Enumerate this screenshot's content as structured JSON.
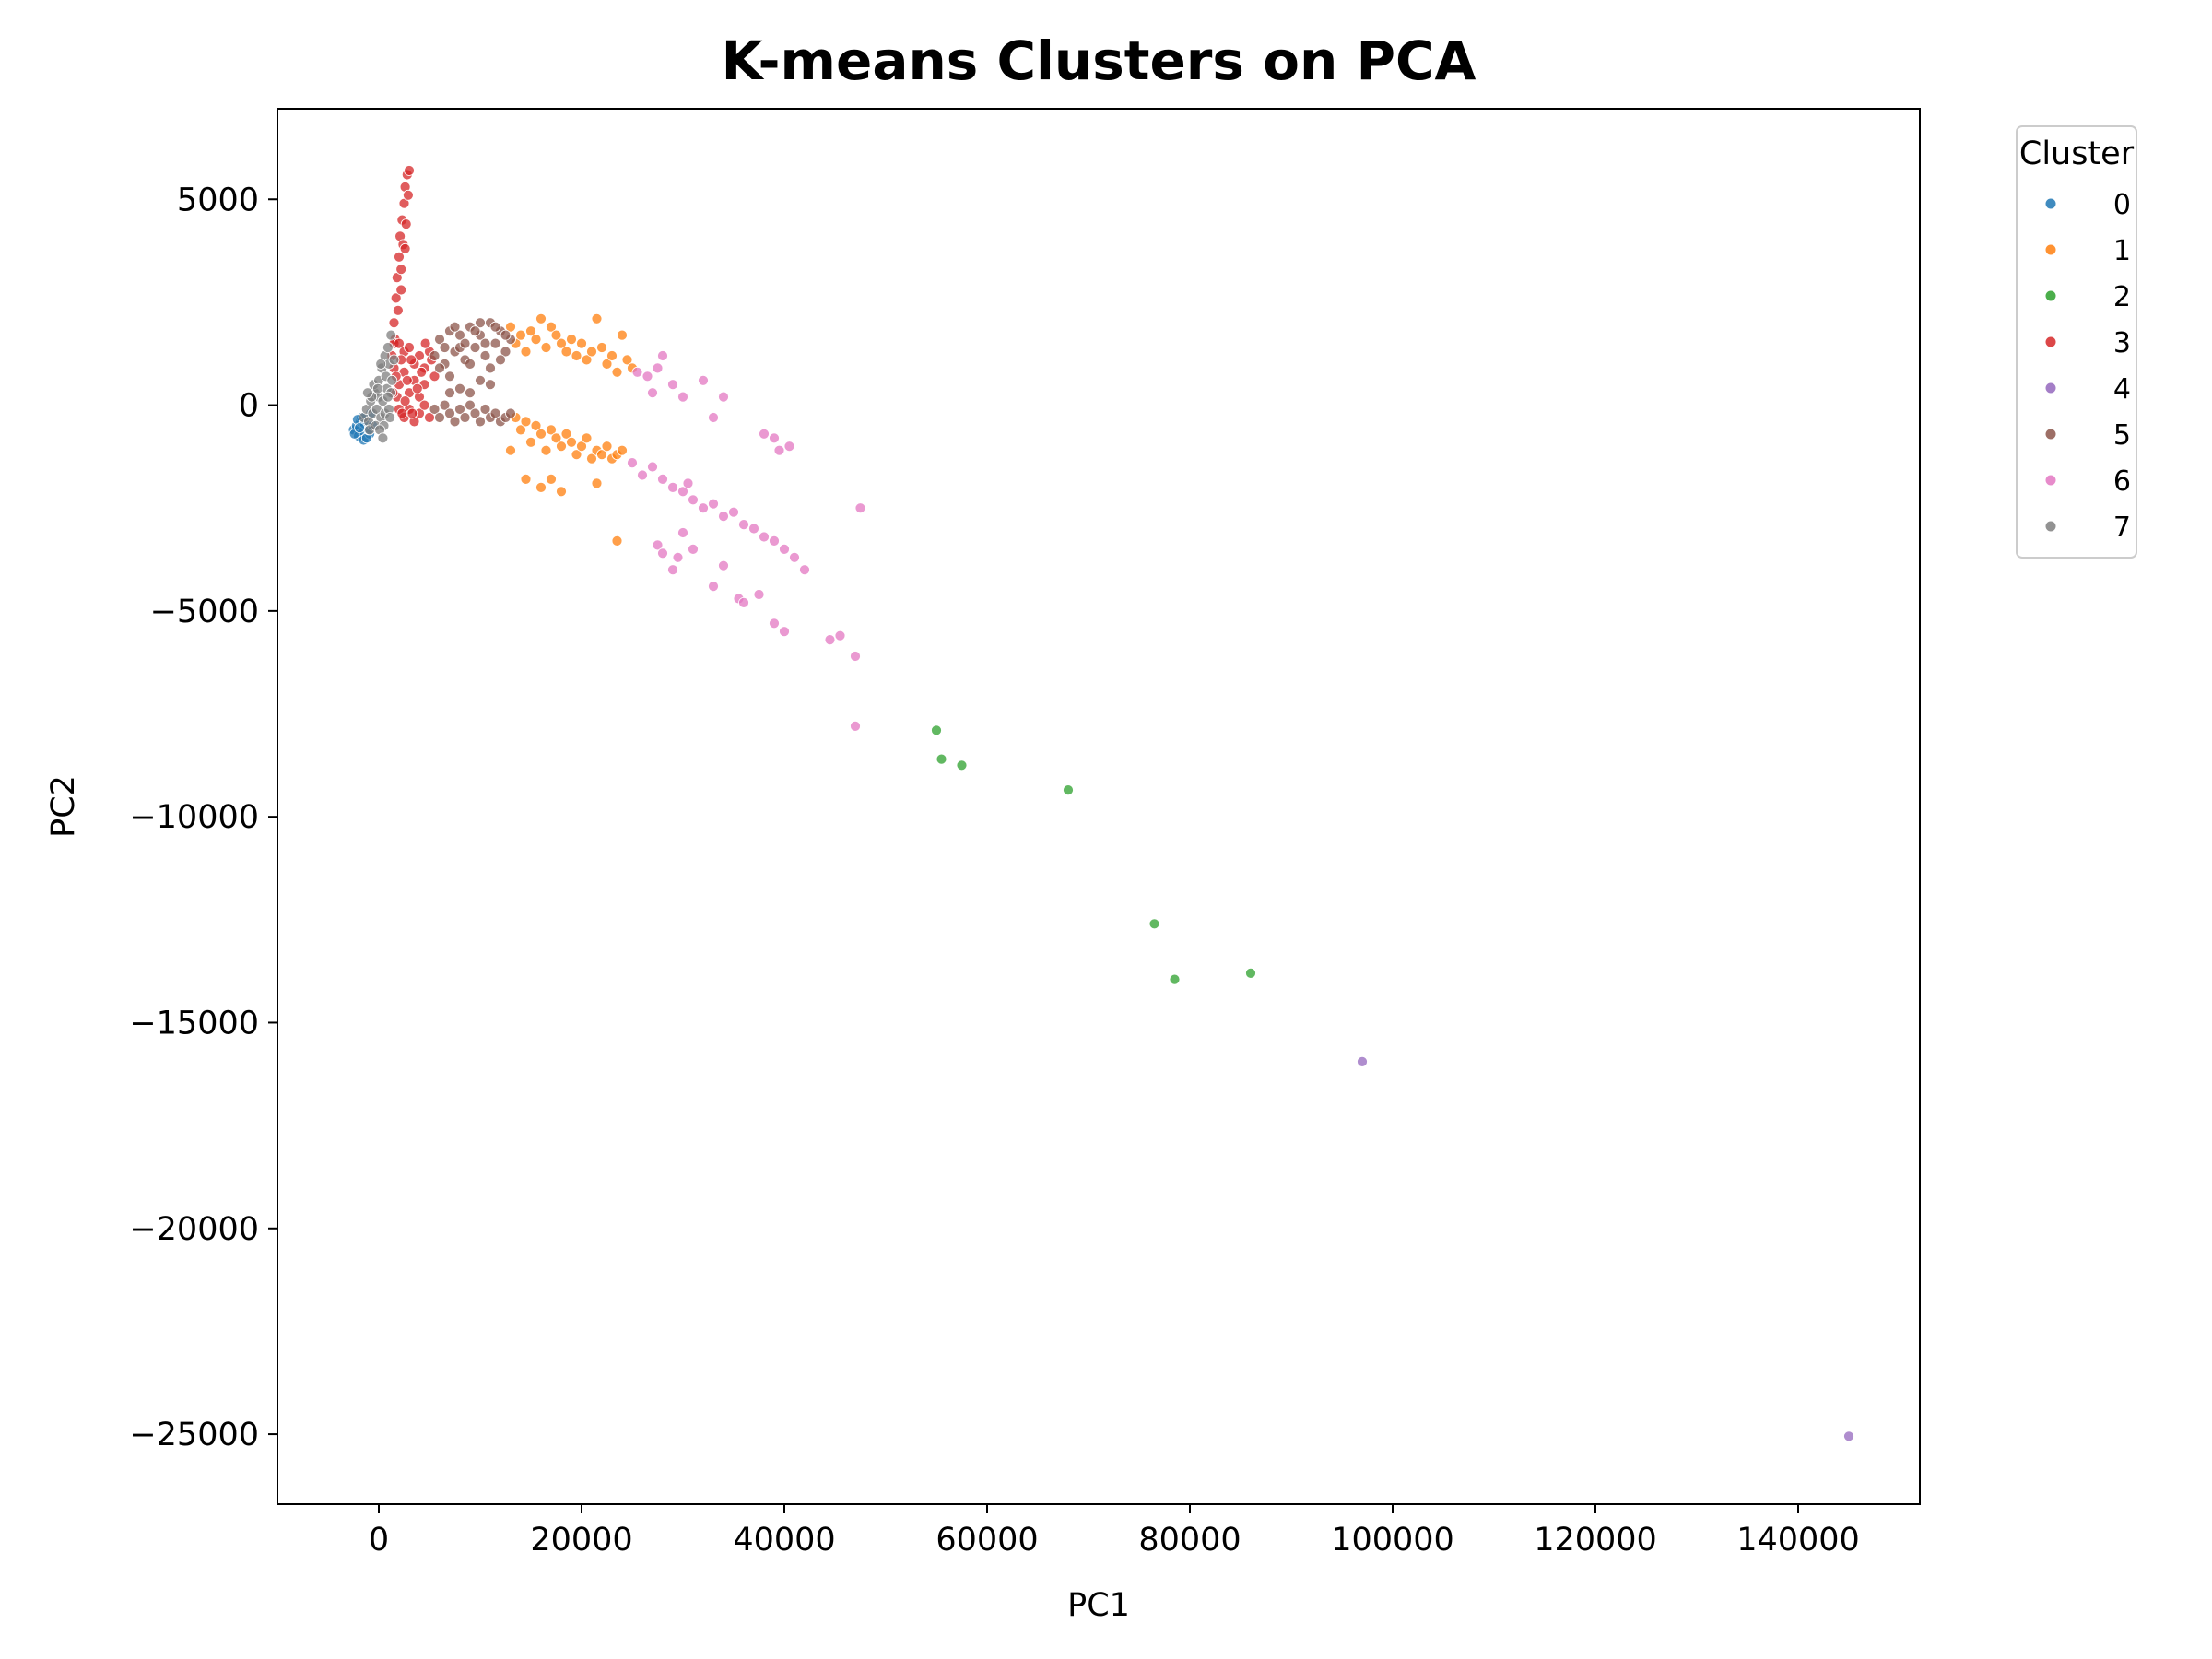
{
  "chart_data": {
    "type": "scatter",
    "title": "K-means Clusters on PCA",
    "xlabel": "PC1",
    "ylabel": "PC2",
    "xlim": [
      -10000,
      152000
    ],
    "ylim": [
      -26700,
      7200
    ],
    "xticks": [
      0,
      20000,
      40000,
      60000,
      80000,
      100000,
      120000,
      140000
    ],
    "xtick_labels": [
      "0",
      "20000",
      "40000",
      "60000",
      "80000",
      "100000",
      "120000",
      "140000"
    ],
    "yticks": [
      5000,
      0,
      -5000,
      -10000,
      -15000,
      -20000,
      -25000
    ],
    "ytick_labels": [
      "5000",
      "0",
      "−5000",
      "−10000",
      "−15000",
      "−20000",
      "−25000"
    ],
    "grid": false,
    "legend": {
      "title": "Cluster",
      "placement": "outside-top-right"
    },
    "series": [
      {
        "name": "0",
        "color": "#1f77b4",
        "points": [
          [
            -2500,
            -600
          ],
          [
            -2200,
            -500
          ],
          [
            -2000,
            -750
          ],
          [
            -1800,
            -400
          ],
          [
            -1600,
            -650
          ],
          [
            -1500,
            -850
          ],
          [
            -1300,
            -300
          ],
          [
            -1100,
            -550
          ],
          [
            -900,
            -700
          ],
          [
            -800,
            -200
          ],
          [
            -2400,
            -700
          ],
          [
            -1700,
            -300
          ],
          [
            -1200,
            -800
          ],
          [
            -2100,
            -350
          ],
          [
            -1400,
            -450
          ],
          [
            -1000,
            -600
          ],
          [
            -600,
            -500
          ],
          [
            -1900,
            -550
          ]
        ]
      },
      {
        "name": "1",
        "color": "#ff7f0e",
        "points": [
          [
            13000,
            1900
          ],
          [
            13500,
            1500
          ],
          [
            14000,
            1700
          ],
          [
            14500,
            1300
          ],
          [
            15000,
            1800
          ],
          [
            15500,
            1600
          ],
          [
            16000,
            2100
          ],
          [
            16500,
            1400
          ],
          [
            17000,
            1900
          ],
          [
            17500,
            1700
          ],
          [
            18000,
            1500
          ],
          [
            18500,
            1300
          ],
          [
            19000,
            1600
          ],
          [
            19500,
            1200
          ],
          [
            20000,
            1500
          ],
          [
            20500,
            1100
          ],
          [
            21000,
            1300
          ],
          [
            21500,
            2100
          ],
          [
            22000,
            1400
          ],
          [
            22500,
            1000
          ],
          [
            23000,
            1200
          ],
          [
            23500,
            800
          ],
          [
            24000,
            1700
          ],
          [
            24500,
            1100
          ],
          [
            25000,
            900
          ],
          [
            13500,
            -300
          ],
          [
            14000,
            -600
          ],
          [
            14500,
            -400
          ],
          [
            15000,
            -900
          ],
          [
            15500,
            -500
          ],
          [
            16000,
            -700
          ],
          [
            16500,
            -1100
          ],
          [
            17000,
            -600
          ],
          [
            17500,
            -800
          ],
          [
            18000,
            -1000
          ],
          [
            18500,
            -700
          ],
          [
            19000,
            -900
          ],
          [
            19500,
            -1200
          ],
          [
            20000,
            -1000
          ],
          [
            20500,
            -800
          ],
          [
            21000,
            -1300
          ],
          [
            21500,
            -1100
          ],
          [
            22000,
            -1200
          ],
          [
            22500,
            -1000
          ],
          [
            23000,
            -1300
          ],
          [
            23500,
            -1200
          ],
          [
            24000,
            -1100
          ],
          [
            13000,
            -1100
          ],
          [
            14500,
            -1800
          ],
          [
            16000,
            -2000
          ],
          [
            17000,
            -1800
          ],
          [
            18000,
            -2100
          ],
          [
            21500,
            -1900
          ],
          [
            23500,
            -3300
          ]
        ]
      },
      {
        "name": "2",
        "color": "#2ca02c",
        "points": [
          [
            55000,
            -7900
          ],
          [
            55500,
            -8600
          ],
          [
            57500,
            -8750
          ],
          [
            68000,
            -9350
          ],
          [
            76500,
            -12600
          ],
          [
            78500,
            -13950
          ],
          [
            86000,
            -13800
          ]
        ]
      },
      {
        "name": "3",
        "color": "#d62728",
        "points": [
          [
            1300,
            1200
          ],
          [
            1500,
            2000
          ],
          [
            1700,
            2600
          ],
          [
            1800,
            3100
          ],
          [
            1900,
            2300
          ],
          [
            2000,
            3600
          ],
          [
            2100,
            4100
          ],
          [
            2200,
            3300
          ],
          [
            2300,
            4500
          ],
          [
            2400,
            3900
          ],
          [
            2500,
            4900
          ],
          [
            2600,
            5300
          ],
          [
            2700,
            4400
          ],
          [
            2800,
            5600
          ],
          [
            2900,
            5100
          ],
          [
            3000,
            5700
          ],
          [
            1600,
            1600
          ],
          [
            2200,
            2800
          ],
          [
            2600,
            3800
          ],
          [
            1500,
            1500
          ],
          [
            2000,
            1500
          ],
          [
            2500,
            1300
          ],
          [
            3000,
            1400
          ],
          [
            3500,
            1000
          ],
          [
            4000,
            1200
          ],
          [
            4500,
            900
          ],
          [
            5000,
            1300
          ],
          [
            1500,
            900
          ],
          [
            2000,
            500
          ],
          [
            2500,
            800
          ],
          [
            3000,
            300
          ],
          [
            3500,
            600
          ],
          [
            4000,
            200
          ],
          [
            4500,
            500
          ],
          [
            2000,
            -100
          ],
          [
            2500,
            -300
          ],
          [
            3000,
            -100
          ],
          [
            3500,
            -400
          ],
          [
            4000,
            -200
          ],
          [
            4500,
            0
          ],
          [
            5000,
            -300
          ],
          [
            1800,
            200
          ],
          [
            2200,
            1100
          ],
          [
            2800,
            600
          ],
          [
            3200,
            1100
          ],
          [
            3800,
            400
          ],
          [
            4200,
            800
          ],
          [
            1400,
            300
          ],
          [
            2600,
            100
          ],
          [
            3300,
            -200
          ],
          [
            1700,
            700
          ],
          [
            2300,
            -200
          ],
          [
            4600,
            1500
          ],
          [
            5200,
            1100
          ],
          [
            5500,
            700
          ]
        ]
      },
      {
        "name": "4",
        "color": "#9467bd",
        "points": [
          [
            97000,
            -15950
          ],
          [
            145000,
            -25050
          ]
        ]
      },
      {
        "name": "5",
        "color": "#8c564b",
        "points": [
          [
            5500,
            1200
          ],
          [
            6000,
            1600
          ],
          [
            6500,
            1000
          ],
          [
            7000,
            1800
          ],
          [
            7500,
            1300
          ],
          [
            8000,
            1700
          ],
          [
            8500,
            1100
          ],
          [
            9000,
            1900
          ],
          [
            9500,
            1400
          ],
          [
            10000,
            1700
          ],
          [
            10500,
            1200
          ],
          [
            11000,
            2000
          ],
          [
            11500,
            1500
          ],
          [
            12000,
            1800
          ],
          [
            12500,
            1300
          ],
          [
            13000,
            1600
          ],
          [
            6000,
            900
          ],
          [
            7000,
            700
          ],
          [
            8000,
            1400
          ],
          [
            9000,
            1000
          ],
          [
            10000,
            2000
          ],
          [
            11000,
            900
          ],
          [
            12000,
            1100
          ],
          [
            6500,
            1400
          ],
          [
            7500,
            1900
          ],
          [
            8500,
            1500
          ],
          [
            9500,
            1800
          ],
          [
            10500,
            1500
          ],
          [
            11500,
            1900
          ],
          [
            12500,
            1700
          ],
          [
            5500,
            -100
          ],
          [
            6000,
            -300
          ],
          [
            6500,
            0
          ],
          [
            7000,
            -200
          ],
          [
            7500,
            -400
          ],
          [
            8000,
            -100
          ],
          [
            8500,
            -300
          ],
          [
            9000,
            0
          ],
          [
            9500,
            -200
          ],
          [
            10000,
            -400
          ],
          [
            10500,
            -100
          ],
          [
            11000,
            -300
          ],
          [
            11500,
            -200
          ],
          [
            12000,
            -400
          ],
          [
            12500,
            -300
          ],
          [
            13000,
            -200
          ],
          [
            7000,
            300
          ],
          [
            8000,
            400
          ],
          [
            9000,
            300
          ],
          [
            10000,
            600
          ],
          [
            11000,
            500
          ]
        ]
      },
      {
        "name": "6",
        "color": "#e377c2",
        "points": [
          [
            25500,
            800
          ],
          [
            26500,
            700
          ],
          [
            27000,
            300
          ],
          [
            27500,
            900
          ],
          [
            28000,
            1200
          ],
          [
            29000,
            500
          ],
          [
            30000,
            200
          ],
          [
            32000,
            600
          ],
          [
            33000,
            -300
          ],
          [
            34000,
            200
          ],
          [
            38000,
            -700
          ],
          [
            39000,
            -800
          ],
          [
            39500,
            -1100
          ],
          [
            40500,
            -1000
          ],
          [
            25000,
            -1400
          ],
          [
            26000,
            -1700
          ],
          [
            27000,
            -1500
          ],
          [
            28000,
            -1800
          ],
          [
            29000,
            -2000
          ],
          [
            30000,
            -2100
          ],
          [
            30500,
            -1900
          ],
          [
            31000,
            -2300
          ],
          [
            32000,
            -2500
          ],
          [
            33000,
            -2400
          ],
          [
            34000,
            -2700
          ],
          [
            35000,
            -2600
          ],
          [
            36000,
            -2900
          ],
          [
            37000,
            -3000
          ],
          [
            38000,
            -3200
          ],
          [
            39000,
            -3300
          ],
          [
            40000,
            -3500
          ],
          [
            41000,
            -3700
          ],
          [
            42000,
            -4000
          ],
          [
            27500,
            -3400
          ],
          [
            28000,
            -3600
          ],
          [
            29000,
            -4000
          ],
          [
            29500,
            -3700
          ],
          [
            30000,
            -3100
          ],
          [
            31000,
            -3500
          ],
          [
            33000,
            -4400
          ],
          [
            34000,
            -3900
          ],
          [
            35500,
            -4700
          ],
          [
            36000,
            -4800
          ],
          [
            37500,
            -4600
          ],
          [
            39000,
            -5300
          ],
          [
            40000,
            -5500
          ],
          [
            44500,
            -5700
          ],
          [
            45500,
            -5600
          ],
          [
            47000,
            -6100
          ],
          [
            47500,
            -2500
          ],
          [
            47000,
            -7800
          ]
        ]
      },
      {
        "name": "7",
        "color": "#7f7f7f",
        "points": [
          [
            -1500,
            -300
          ],
          [
            -1200,
            -100
          ],
          [
            -1000,
            -400
          ],
          [
            -800,
            100
          ],
          [
            -600,
            -200
          ],
          [
            -400,
            300
          ],
          [
            -200,
            -100
          ],
          [
            0,
            200
          ],
          [
            200,
            -300
          ],
          [
            400,
            100
          ],
          [
            600,
            -200
          ],
          [
            800,
            400
          ],
          [
            1000,
            -100
          ],
          [
            1200,
            300
          ],
          [
            -500,
            500
          ],
          [
            0,
            600
          ],
          [
            300,
            900
          ],
          [
            600,
            1200
          ],
          [
            900,
            1400
          ],
          [
            1200,
            1700
          ],
          [
            -900,
            -600
          ],
          [
            -300,
            -500
          ],
          [
            500,
            -500
          ],
          [
            -700,
            200
          ],
          [
            100,
            -600
          ],
          [
            700,
            700
          ],
          [
            1000,
            1000
          ],
          [
            1300,
            600
          ],
          [
            -100,
            400
          ],
          [
            400,
            -800
          ],
          [
            1100,
            -300
          ],
          [
            200,
            1000
          ],
          [
            -1100,
            300
          ],
          [
            900,
            200
          ],
          [
            1500,
            1100
          ]
        ]
      }
    ]
  }
}
